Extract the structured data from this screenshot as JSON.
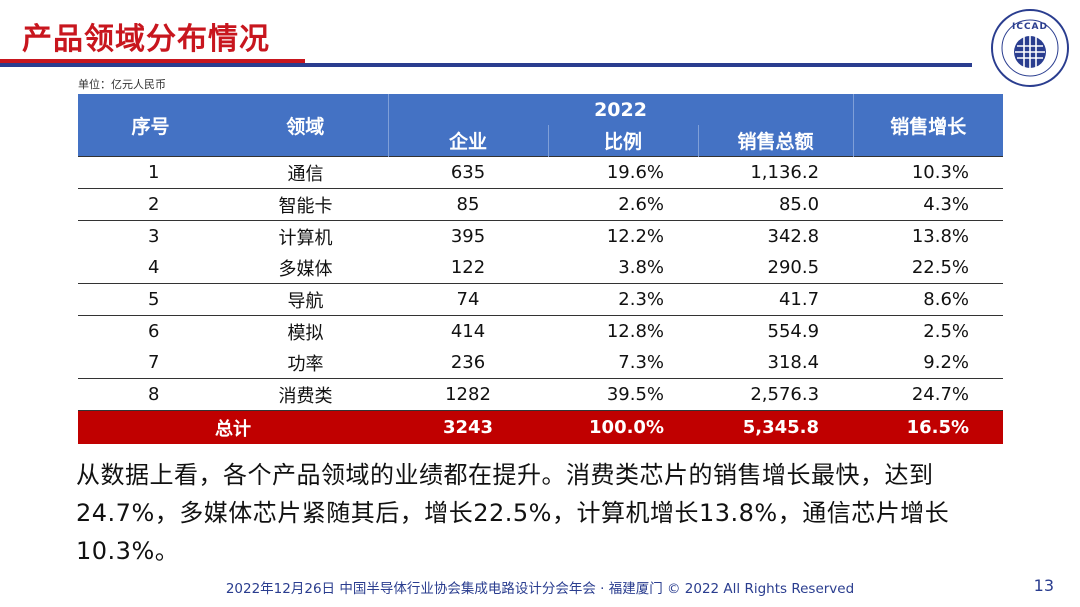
{
  "title": "产品领域分布情况",
  "logo_text": "ICCAD",
  "logo_subtext": "中国半导体行业协会集成电路设计分会",
  "unit": "单位：亿元人民币",
  "table": {
    "headers": {
      "index": "序号",
      "field": "领域",
      "year": "2022",
      "companies": "企业",
      "share": "比例",
      "sales": "销售总额",
      "growth": "销售增长"
    },
    "rows": [
      {
        "index": "1",
        "field": "通信",
        "companies": "635",
        "share": "19.6%",
        "sales": "1,136.2",
        "growth": "10.3%"
      },
      {
        "index": "2",
        "field": "智能卡",
        "companies": "85",
        "share": "2.6%",
        "sales": "85.0",
        "growth": "4.3%"
      },
      {
        "index": "3",
        "field": "计算机",
        "companies": "395",
        "share": "12.2%",
        "sales": "342.8",
        "growth": "13.8%"
      },
      {
        "index": "4",
        "field": "多媒体",
        "companies": "122",
        "share": "3.8%",
        "sales": "290.5",
        "growth": "22.5%"
      },
      {
        "index": "5",
        "field": "导航",
        "companies": "74",
        "share": "2.3%",
        "sales": "41.7",
        "growth": "8.6%"
      },
      {
        "index": "6",
        "field": "模拟",
        "companies": "414",
        "share": "12.8%",
        "sales": "554.9",
        "growth": "2.5%"
      },
      {
        "index": "7",
        "field": "功率",
        "companies": "236",
        "share": "7.3%",
        "sales": "318.4",
        "growth": "9.2%"
      },
      {
        "index": "8",
        "field": "消费类",
        "companies": "1282",
        "share": "39.5%",
        "sales": "2,576.3",
        "growth": "24.7%"
      }
    ],
    "total": {
      "label": "总计",
      "companies": "3243",
      "share": "100.0%",
      "sales": "5,345.8",
      "growth": "16.5%"
    }
  },
  "summary": "从数据上看，各个产品领域的业绩都在提升。消费类芯片的销售增长最快，达到24.7%，多媒体芯片紧随其后，增长22.5%，计算机增长13.8%，通信芯片增长10.3%。",
  "footer": "2022年12月26日 中国半导体行业协会集成电路设计分会年会 · 福建厦门 © 2022 All Rights Reserved",
  "page_number": "13",
  "colors": {
    "title_red": "#c8161e",
    "header_blue": "#4472c4",
    "total_red": "#c00000",
    "navy": "#2a3d8f"
  }
}
